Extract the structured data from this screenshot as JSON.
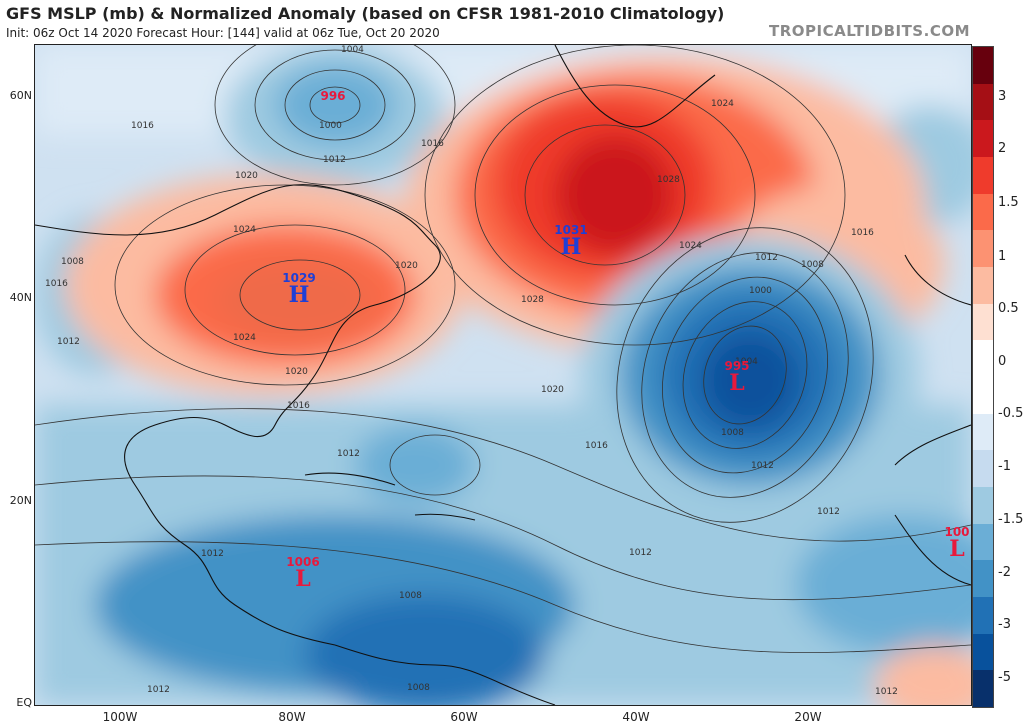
{
  "header": {
    "title": "GFS MSLP (mb) & Normalized Anomaly (based on CFSR 1981-2010 Climatology)",
    "subtitle": "Init: 06z Oct 14 2020   Forecast Hour: [144]   valid at 06z Tue, Oct 20 2020",
    "brand": "TROPICALTIDBITS.COM"
  },
  "axes": {
    "lat_labels": [
      "60N",
      "40N",
      "20N",
      "EQ"
    ],
    "lon_labels": [
      "100W",
      "80W",
      "60W",
      "40W",
      "20W"
    ]
  },
  "colorbar": {
    "labels": [
      "3",
      "2",
      "1.5",
      "1",
      "0.5",
      "0",
      "-0.5",
      "-1",
      "-1.5",
      "-2",
      "-3",
      "-5"
    ],
    "colors": [
      "#67000d",
      "#a50f15",
      "#cb181d",
      "#ef3b2c",
      "#fb6a4a",
      "#fc9272",
      "#fcbba1",
      "#fee0d2",
      "#ffffff",
      "#ffffff",
      "#deebf7",
      "#c6dbef",
      "#9ecae1",
      "#6baed6",
      "#4292c6",
      "#2171b5",
      "#08519c",
      "#08306b"
    ]
  },
  "systems": [
    {
      "type": "L",
      "value": "996",
      "color": "#e8193c"
    },
    {
      "type": "H",
      "value": "1031",
      "color": "#1f3fd6"
    },
    {
      "type": "H",
      "value": "1029",
      "color": "#1f3fd6"
    },
    {
      "type": "L",
      "value": "995",
      "color": "#e8193c"
    },
    {
      "type": "L",
      "value": "1006",
      "color": "#e8193c"
    },
    {
      "type": "L",
      "value": "100",
      "color": "#e8193c"
    }
  ],
  "isobar_labels": [
    "1004",
    "1000",
    "1012",
    "1016",
    "1016",
    "1020",
    "1024",
    "1024",
    "1028",
    "1028",
    "1024",
    "1016",
    "1012",
    "1008",
    "1000",
    "1004",
    "1012",
    "1008",
    "1012",
    "1016",
    "1020",
    "1024",
    "1020",
    "1016",
    "1012",
    "1016",
    "1012",
    "1012",
    "1012",
    "1012",
    "1008",
    "1008",
    "1012",
    "1008",
    "1020"
  ]
}
